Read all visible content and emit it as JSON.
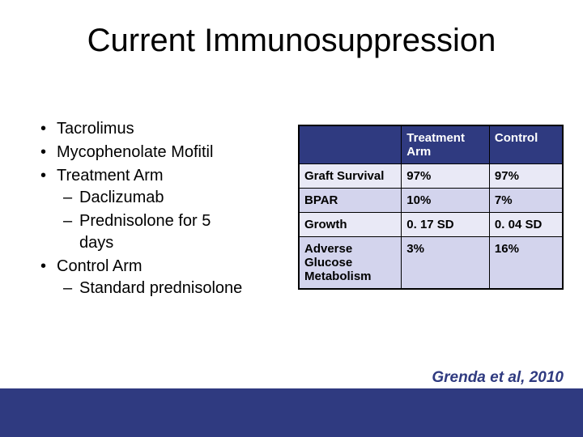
{
  "title": "Current Immunosuppression",
  "bullets": {
    "b1": "Tacrolimus",
    "b2": "Mycophenolate Mofitil",
    "b3": "Treatment Arm",
    "b3a": "Daclizumab",
    "b3b": "Prednisolone for 5 days",
    "b4": "Control Arm",
    "b4a": "Standard prednisolone"
  },
  "table": {
    "header_blank": "",
    "header_treatment": "Treatment Arm",
    "header_control": "Control",
    "rows": [
      {
        "label": "Graft Survival",
        "treatment": "97%",
        "control": "97%"
      },
      {
        "label": "BPAR",
        "treatment": "10%",
        "control": "7%"
      },
      {
        "label": "Growth",
        "treatment": "0. 17 SD",
        "control": "0. 04 SD"
      },
      {
        "label": "Adverse Glucose Metabolism",
        "treatment": "3%",
        "control": "16%"
      }
    ],
    "colors": {
      "header_bg": "#2f3a80",
      "header_fg": "#ffffff",
      "row_bg_even": "#e9e9f6",
      "row_bg_odd": "#d3d4ed",
      "border": "#000000"
    }
  },
  "citation": "Grenda et al, 2010",
  "footer_color": "#2f3a80"
}
